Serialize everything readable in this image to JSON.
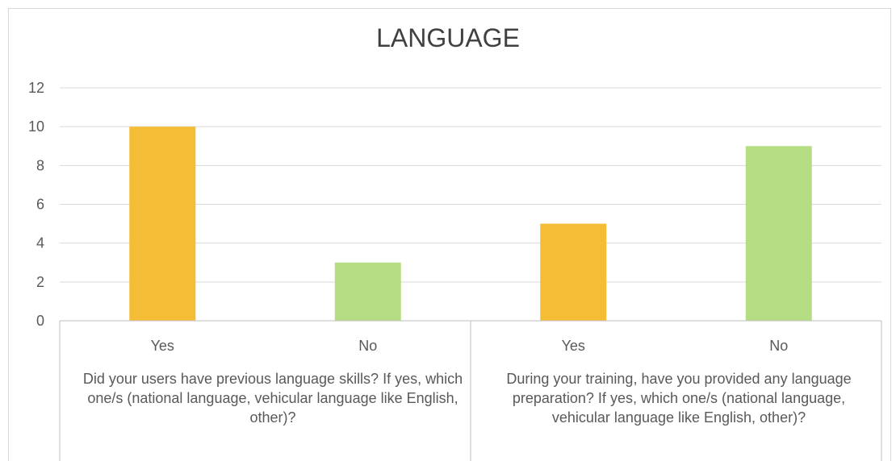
{
  "chart_data": {
    "type": "bar",
    "title": "LANGUAGE",
    "xlabel": "",
    "ylabel": "",
    "ylim": [
      0,
      12
    ],
    "yticks": [
      0,
      2,
      4,
      6,
      8,
      10,
      12
    ],
    "grid": true,
    "legend": "none",
    "groups": [
      {
        "label": "Did your users have previous language skills? If yes, which one/s (national language, vehicular language like English, other)?",
        "bars": [
          {
            "category": "Yes",
            "value": 10,
            "color": "#f5bd35"
          },
          {
            "category": "No",
            "value": 3,
            "color": "#b5dd84"
          }
        ]
      },
      {
        "label": "During your training, have you provided any language preparation? If yes, which one/s (national language, vehicular language like English, other)?",
        "bars": [
          {
            "category": "Yes",
            "value": 5,
            "color": "#f5bd35"
          },
          {
            "category": "No",
            "value": 9,
            "color": "#b5dd84"
          }
        ]
      }
    ]
  }
}
